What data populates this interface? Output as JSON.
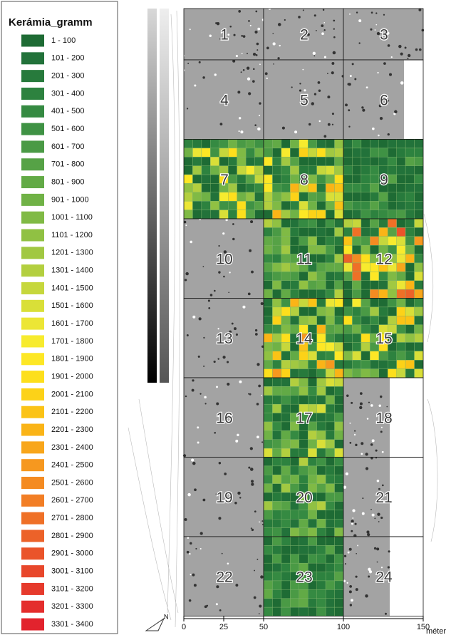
{
  "legend": {
    "title": "Kerámia_gramm",
    "items": [
      {
        "label": "1 - 100",
        "color": "#1e6b34"
      },
      {
        "label": "101 - 200",
        "color": "#22723a"
      },
      {
        "label": "201 - 300",
        "color": "#277a3c"
      },
      {
        "label": "301 - 400",
        "color": "#2d823f"
      },
      {
        "label": "401 - 500",
        "color": "#358a42"
      },
      {
        "label": "501 - 600",
        "color": "#3f9244"
      },
      {
        "label": "601 - 700",
        "color": "#4a9a45"
      },
      {
        "label": "701 - 800",
        "color": "#56a246"
      },
      {
        "label": "801 - 900",
        "color": "#62aa46"
      },
      {
        "label": "901 - 1000",
        "color": "#70b246"
      },
      {
        "label": "1001 - 1100",
        "color": "#80ba45"
      },
      {
        "label": "1101 - 1200",
        "color": "#90c143"
      },
      {
        "label": "1201 - 1300",
        "color": "#a1c842"
      },
      {
        "label": "1301 - 1400",
        "color": "#b3cf3f"
      },
      {
        "label": "1401 - 1500",
        "color": "#c6d73c"
      },
      {
        "label": "1501 - 1600",
        "color": "#d9df38"
      },
      {
        "label": "1601 - 1700",
        "color": "#ece635"
      },
      {
        "label": "1701 - 1800",
        "color": "#f7eb2e"
      },
      {
        "label": "1801 - 1900",
        "color": "#fde725"
      },
      {
        "label": "1901 - 2000",
        "color": "#fddf1c"
      },
      {
        "label": "2001 - 2100",
        "color": "#fcd218"
      },
      {
        "label": "2101 - 2200",
        "color": "#fbc316"
      },
      {
        "label": "2201 - 2300",
        "color": "#fab417"
      },
      {
        "label": "2301 - 2400",
        "color": "#f8a61b"
      },
      {
        "label": "2401 - 2500",
        "color": "#f6981f"
      },
      {
        "label": "2501 - 2600",
        "color": "#f48b22"
      },
      {
        "label": "2601 - 2700",
        "color": "#f27e25"
      },
      {
        "label": "2701 - 2800",
        "color": "#ef7027"
      },
      {
        "label": "2801 - 2900",
        "color": "#ec6229"
      },
      {
        "label": "2901 - 3000",
        "color": "#ea542a"
      },
      {
        "label": "3001 - 3100",
        "color": "#e8472b"
      },
      {
        "label": "3101 - 3200",
        "color": "#e63a2c"
      },
      {
        "label": "3201 - 3300",
        "color": "#e42e2d"
      },
      {
        "label": "3301 - 3400",
        "color": "#e2232d"
      }
    ]
  },
  "map": {
    "cells": [
      "1",
      "2",
      "3",
      "4",
      "5",
      "6",
      "7",
      "8",
      "9",
      "10",
      "11",
      "12",
      "13",
      "14",
      "15",
      "16",
      "17",
      "18",
      "19",
      "20",
      "21",
      "22",
      "23",
      "24"
    ]
  },
  "scale": {
    "ticks": [
      0,
      25,
      50,
      100,
      150
    ],
    "unit": "méter"
  }
}
